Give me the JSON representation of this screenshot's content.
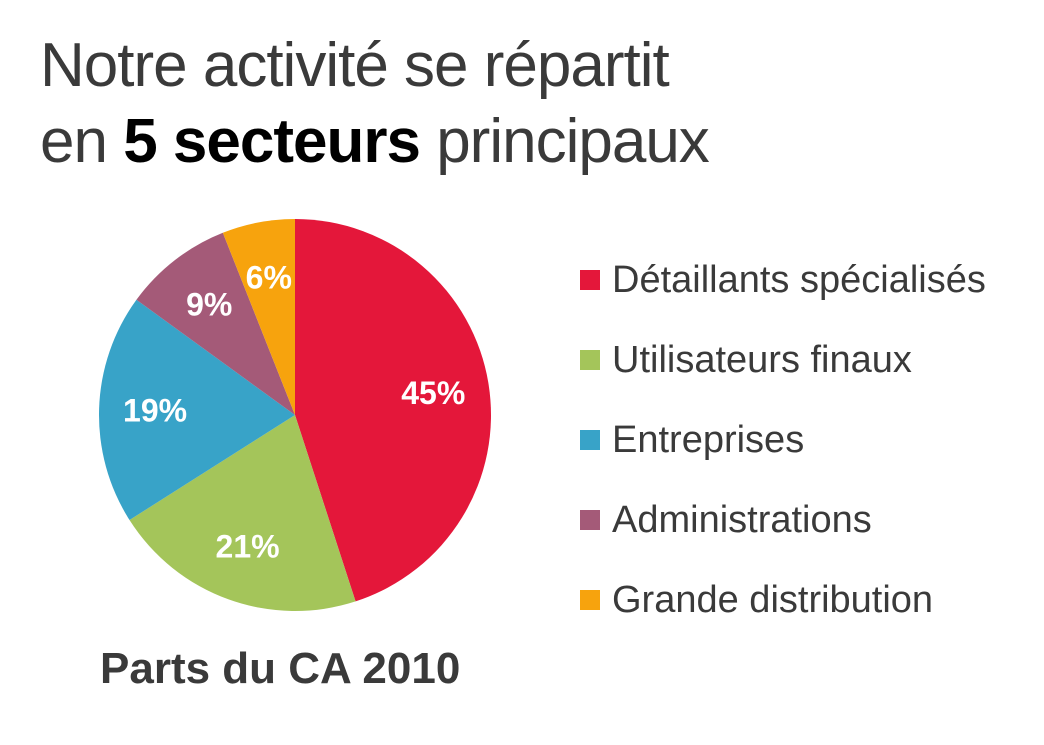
{
  "title": {
    "line1": "Notre activité se répartit",
    "line2_prefix": "en ",
    "line2_bold": "5 secteurs",
    "line2_suffix": " principaux"
  },
  "chart_data": {
    "type": "pie",
    "subtitle": "Parts du CA 2010",
    "legend_position": "right",
    "slices": [
      {
        "label": "Détaillants spécialisés",
        "value": 45,
        "display": "45%",
        "color": "#e4173a"
      },
      {
        "label": "Utilisateurs finaux",
        "value": 21,
        "display": "21%",
        "color": "#a4c55a"
      },
      {
        "label": "Entreprises",
        "value": 19,
        "display": "19%",
        "color": "#38a3c8"
      },
      {
        "label": "Administrations",
        "value": 9,
        "display": "9%",
        "color": "#a45a78"
      },
      {
        "label": "Grande distribution",
        "value": 6,
        "display": "6%",
        "color": "#f7a30d"
      }
    ]
  }
}
